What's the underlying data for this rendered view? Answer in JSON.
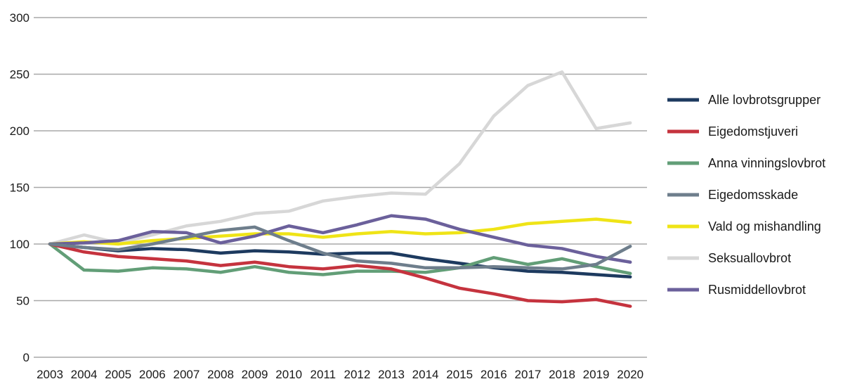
{
  "figure": {
    "background": "#ffffff",
    "text_color": "#1a1a1a"
  },
  "chart_data": {
    "type": "line",
    "title": "",
    "xlabel": "",
    "ylabel": "",
    "x": [
      2003,
      2004,
      2005,
      2006,
      2007,
      2008,
      2009,
      2010,
      2011,
      2012,
      2013,
      2014,
      2015,
      2016,
      2017,
      2018,
      2019,
      2020
    ],
    "series": [
      {
        "name": "Alle lovbrotsgrupper",
        "color": "#1d3a5f",
        "values": [
          100,
          97,
          94,
          96,
          95,
          92,
          94,
          93,
          91,
          92,
          92,
          87,
          83,
          79,
          76,
          75,
          73,
          71
        ]
      },
      {
        "name": "Eigedomstjuveri",
        "color": "#c5333e",
        "values": [
          100,
          93,
          89,
          87,
          85,
          81,
          84,
          80,
          78,
          81,
          78,
          70,
          61,
          56,
          50,
          49,
          51,
          45
        ]
      },
      {
        "name": "Anna vinningslovbrot",
        "color": "#629e77",
        "values": [
          100,
          77,
          76,
          79,
          78,
          75,
          80,
          75,
          73,
          76,
          76,
          75,
          79,
          88,
          82,
          87,
          80,
          74
        ]
      },
      {
        "name": "Eigedomsskade",
        "color": "#6e7e8c",
        "values": [
          100,
          97,
          95,
          100,
          106,
          112,
          115,
          103,
          92,
          85,
          83,
          79,
          79,
          80,
          79,
          78,
          82,
          98
        ]
      },
      {
        "name": "Vald og mishandling",
        "color": "#efe417",
        "values": [
          100,
          102,
          100,
          103,
          105,
          107,
          109,
          109,
          106,
          109,
          111,
          109,
          110,
          113,
          118,
          120,
          122,
          119
        ]
      },
      {
        "name": "Seksuallovbrot",
        "color": "#d7d7d7",
        "values": [
          100,
          108,
          101,
          108,
          116,
          120,
          127,
          129,
          138,
          142,
          145,
          144,
          171,
          213,
          240,
          252,
          202,
          207
        ]
      },
      {
        "name": "Rusmiddellovbrot",
        "color": "#6b609b",
        "values": [
          100,
          101,
          103,
          111,
          110,
          101,
          107,
          116,
          110,
          117,
          125,
          122,
          113,
          106,
          99,
          96,
          89,
          84
        ]
      }
    ],
    "draw_order": [
      5,
      4,
      6,
      0,
      2,
      1,
      3
    ],
    "ylim": [
      0,
      300
    ],
    "yticks": [
      0,
      50,
      100,
      150,
      200,
      250,
      300
    ],
    "grid": "horizontal",
    "grid_color": "#a8a8a8",
    "legend_position": "right"
  }
}
